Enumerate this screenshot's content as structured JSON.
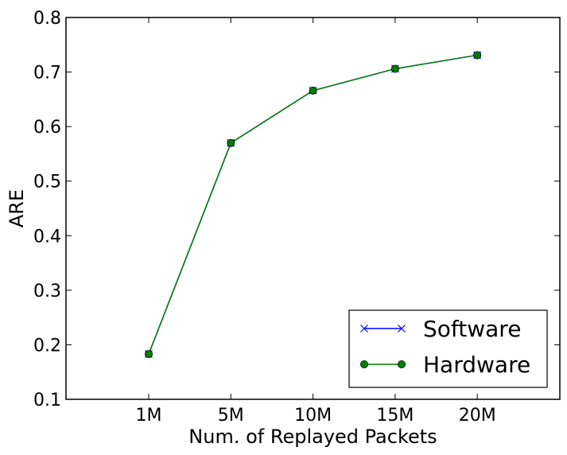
{
  "chart_data": {
    "type": "line",
    "categories": [
      "1M",
      "5M",
      "10M",
      "15M",
      "20M"
    ],
    "xlabel": "Num. of Replayed Packets",
    "ylabel": "ARE",
    "ylim": [
      0.1,
      0.8
    ],
    "yticks": [
      "0.1",
      "0.2",
      "0.3",
      "0.4",
      "0.5",
      "0.6",
      "0.7",
      "0.8"
    ],
    "grid": false,
    "legend_position": "bottom-right",
    "series": [
      {
        "name": "Software",
        "color": "#0000ff",
        "marker": "x-icon",
        "values": [
          0.183,
          0.57,
          0.666,
          0.706,
          0.731
        ]
      },
      {
        "name": "Hardware",
        "color": "#007f00",
        "marker": "circle-icon",
        "values": [
          0.183,
          0.57,
          0.666,
          0.706,
          0.731
        ]
      }
    ]
  }
}
